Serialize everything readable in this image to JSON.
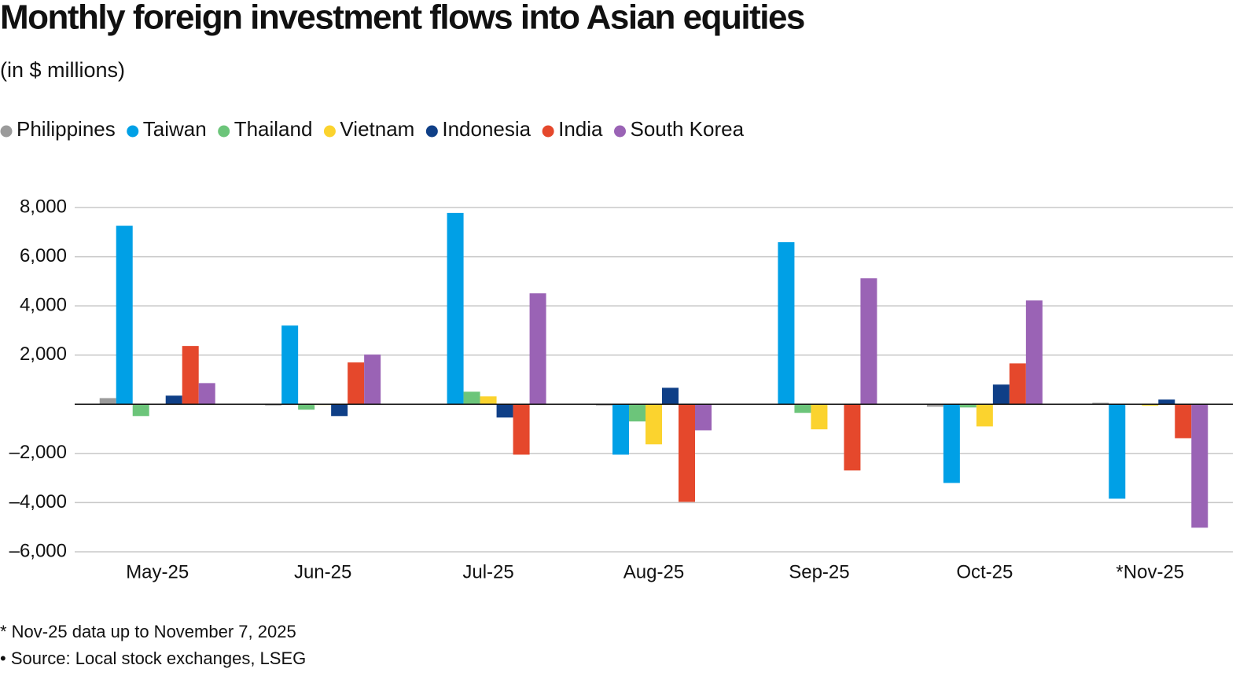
{
  "chart_data": {
    "type": "bar",
    "title": "Monthly foreign investment flows into Asian equities",
    "subtitle": "(in $ millions)",
    "categories": [
      "May-25",
      "Jun-25",
      "Jul-25",
      "Aug-25",
      "Sep-25",
      "Oct-25",
      "*Nov-25"
    ],
    "series": [
      {
        "name": "Philippines",
        "color": "#9b9b9b",
        "values": [
          250,
          -50,
          0,
          -50,
          0,
          -100,
          60
        ]
      },
      {
        "name": "Taiwan",
        "color": "#00a0e6",
        "values": [
          7260,
          3200,
          7780,
          -2050,
          6590,
          -3200,
          -3840
        ]
      },
      {
        "name": "Thailand",
        "color": "#6cc57a",
        "values": [
          -480,
          -220,
          510,
          -700,
          -350,
          -130,
          0
        ]
      },
      {
        "name": "Vietnam",
        "color": "#fbd32e",
        "values": [
          0,
          -30,
          320,
          -1630,
          -1020,
          -900,
          -60
        ]
      },
      {
        "name": "Indonesia",
        "color": "#0f3f87",
        "values": [
          350,
          -480,
          -540,
          670,
          0,
          800,
          190
        ]
      },
      {
        "name": "India",
        "color": "#e5482c",
        "values": [
          2370,
          1700,
          -2050,
          -3970,
          -2690,
          1660,
          -1380
        ]
      },
      {
        "name": "South Korea",
        "color": "#9a63b5",
        "values": [
          860,
          2020,
          4510,
          -1060,
          5120,
          4220,
          -5020
        ]
      }
    ],
    "ylim": [
      -6000,
      8000
    ],
    "yticks": [
      {
        "value": 8000,
        "label": "8,000"
      },
      {
        "value": 6000,
        "label": "6,000"
      },
      {
        "value": 4000,
        "label": "4,000"
      },
      {
        "value": 2000,
        "label": "2,000"
      },
      {
        "value": -2000,
        "label": "–2,000"
      },
      {
        "value": -4000,
        "label": "–4,000"
      },
      {
        "value": -6000,
        "label": "–6,000"
      }
    ],
    "grid": true,
    "legend": "top-left",
    "notes": [
      "* Nov-25 data up to November 7, 2025",
      "• Source: Local stock exchanges, LSEG"
    ]
  }
}
